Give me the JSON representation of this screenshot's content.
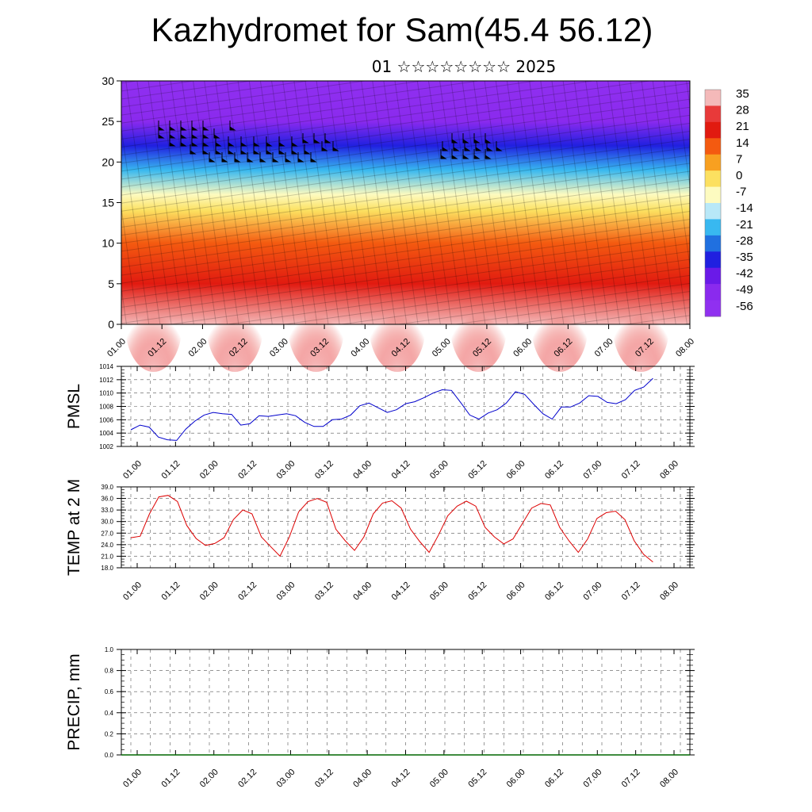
{
  "page": {
    "title": "Kazhydromet for Sam(45.4 56.12)",
    "subtitle": "01 ☆☆☆☆☆☆☆☆ 2025"
  },
  "colorbar": {
    "labels": [
      "35",
      "28",
      "21",
      "14",
      "7",
      "0",
      "-7",
      "-14",
      "-21",
      "-28",
      "-35",
      "-42",
      "-49",
      "-56"
    ],
    "colors": [
      "#f4b9b9",
      "#e83a3a",
      "#e11a10",
      "#f45a10",
      "#f8a020",
      "#fce060",
      "#fdfbc0",
      "#b8e8f8",
      "#38b8f0",
      "#2070e0",
      "#2020e0",
      "#6a1ae8",
      "#8a2aee",
      "#9030f0"
    ]
  },
  "chart_data": [
    {
      "type": "heatmap",
      "title": "",
      "y_ticks": [
        "0",
        "5",
        "10",
        "15",
        "20",
        "25",
        "30"
      ],
      "ylim": [
        0,
        30
      ],
      "x_ticks": [
        "01.00",
        "01.12",
        "02.00",
        "02.12",
        "03.00",
        "03.12",
        "04.00",
        "04.12",
        "05.00",
        "05.12",
        "06.00",
        "06.12",
        "07.00",
        "07.12",
        "08.00"
      ],
      "colorscale_min": -56,
      "colorscale_max": 35,
      "note_levels": [
        {
          "level": 0,
          "value": 33
        },
        {
          "level": 5,
          "value": 22
        },
        {
          "level": 10,
          "value": 14
        },
        {
          "level": 14,
          "value": 2
        },
        {
          "level": 16,
          "value": -8
        },
        {
          "level": 19,
          "value": -22
        },
        {
          "level": 22,
          "value": -38
        },
        {
          "level": 25,
          "value": -50
        },
        {
          "level": 30,
          "value": -58
        }
      ]
    },
    {
      "type": "line",
      "ylabel": "PMSL",
      "ylim": [
        1002,
        1014
      ],
      "y_ticks": [
        "1002",
        "1004",
        "1006",
        "1008",
        "1010",
        "1012",
        "1014"
      ],
      "x_ticks": [
        "01.00",
        "01.12",
        "02.00",
        "02.12",
        "03.00",
        "03.12",
        "04.00",
        "04.12",
        "05.00",
        "05.12",
        "06.00",
        "06.12",
        "07.00",
        "07.12",
        "08.00"
      ],
      "color": "#0000cc",
      "values": [
        1004.5,
        1005.2,
        1004.9,
        1003.4,
        1003.0,
        1002.9,
        1004.6,
        1005.8,
        1006.7,
        1007.1,
        1006.9,
        1006.8,
        1005.2,
        1005.4,
        1006.6,
        1006.5,
        1006.7,
        1006.9,
        1006.6,
        1005.6,
        1005.0,
        1005.0,
        1006.0,
        1006.1,
        1006.7,
        1008.1,
        1008.5,
        1007.8,
        1007.1,
        1007.5,
        1008.4,
        1008.7,
        1009.3,
        1010.0,
        1010.5,
        1010.4,
        1008.6,
        1006.7,
        1006.1,
        1007.0,
        1007.5,
        1008.5,
        1010.2,
        1009.8,
        1008.3,
        1006.9,
        1006.1,
        1007.9,
        1007.9,
        1008.5,
        1009.6,
        1009.5,
        1008.6,
        1008.4,
        1009.0,
        1010.4,
        1010.9,
        1012.2
      ]
    },
    {
      "type": "line",
      "ylabel": "TEMP at 2 M",
      "ylim": [
        18.0,
        39.0
      ],
      "y_ticks": [
        "18.0",
        "21.0",
        "24.0",
        "27.0",
        "30.0",
        "33.0",
        "36.0",
        "39.0"
      ],
      "x_ticks": [
        "01.00",
        "01.12",
        "02.00",
        "02.12",
        "03.00",
        "03.12",
        "04.00",
        "04.12",
        "05.00",
        "05.12",
        "06.00",
        "06.12",
        "07.00",
        "07.12",
        "08.00"
      ],
      "color": "#dd0000",
      "values": [
        25.8,
        26.2,
        32.0,
        36.4,
        36.8,
        35.2,
        29.0,
        25.6,
        23.8,
        24.3,
        25.8,
        30.5,
        33.0,
        32.0,
        26.0,
        23.5,
        21.0,
        26.0,
        32.5,
        35.2,
        36.0,
        35.0,
        28.0,
        25.0,
        22.5,
        26.0,
        32.0,
        34.8,
        35.4,
        33.5,
        28.0,
        24.8,
        22.0,
        26.5,
        31.5,
        34.0,
        35.3,
        34.0,
        28.5,
        26.0,
        24.2,
        25.5,
        29.5,
        33.5,
        34.7,
        34.3,
        28.5,
        25.0,
        22.0,
        25.5,
        30.8,
        32.3,
        32.7,
        30.5,
        25.0,
        21.5,
        19.5
      ]
    },
    {
      "type": "bar",
      "ylabel": "PRECIP, mm",
      "ylim": [
        0.0,
        1.0
      ],
      "y_ticks": [
        "0.0",
        "0.2",
        "0.4",
        "0.6",
        "0.8",
        "1.0"
      ],
      "x_ticks": [
        "01.00",
        "01.12",
        "02.00",
        "02.12",
        "03.00",
        "03.12",
        "04.00",
        "04.12",
        "05.00",
        "05.12",
        "06.00",
        "06.12",
        "07.00",
        "07.12",
        "08.00"
      ],
      "color": "#006600",
      "values": []
    }
  ]
}
